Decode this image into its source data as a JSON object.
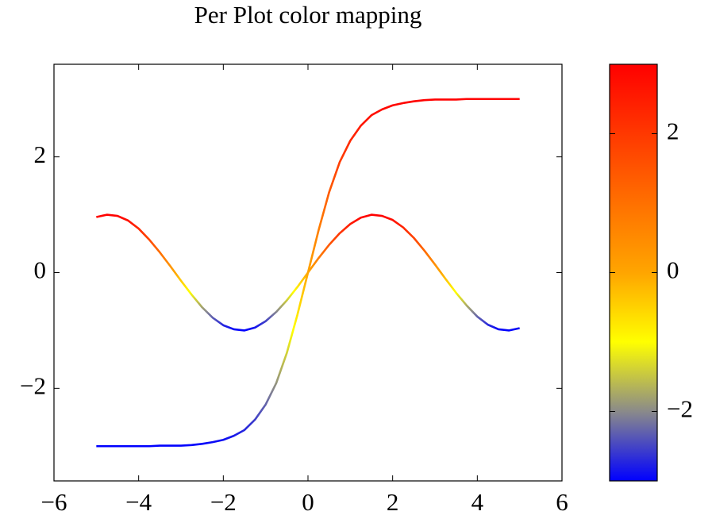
{
  "chart_data": {
    "type": "line",
    "title": "Per Plot color mapping",
    "x": [
      -5,
      -4.75,
      -4.5,
      -4.25,
      -4,
      -3.75,
      -3.5,
      -3.25,
      -3,
      -2.75,
      -2.5,
      -2.25,
      -2,
      -1.75,
      -1.5,
      -1.25,
      -1,
      -0.75,
      -0.5,
      -0.25,
      0,
      0.25,
      0.5,
      0.75,
      1,
      1.25,
      1.5,
      1.75,
      2,
      2.25,
      2.5,
      2.75,
      3,
      3.25,
      3.5,
      3.75,
      4,
      4.25,
      4.5,
      4.75,
      5
    ],
    "series": [
      {
        "values": [
          0.96,
          1.0,
          0.98,
          0.9,
          0.76,
          0.57,
          0.35,
          0.11,
          -0.14,
          -0.38,
          -0.6,
          -0.78,
          -0.91,
          -0.98,
          -1.0,
          -0.95,
          -0.84,
          -0.68,
          -0.48,
          -0.25,
          0,
          0.25,
          0.48,
          0.68,
          0.84,
          0.95,
          1.0,
          0.98,
          0.91,
          0.78,
          0.6,
          0.38,
          0.14,
          -0.11,
          -0.35,
          -0.57,
          -0.76,
          -0.9,
          -0.98,
          -1.0,
          -0.96
        ]
      },
      {
        "values": [
          -3.0,
          -3.0,
          -3.0,
          -3.0,
          -3.0,
          -3.0,
          -2.99,
          -2.99,
          -2.99,
          -2.98,
          -2.96,
          -2.93,
          -2.89,
          -2.82,
          -2.72,
          -2.54,
          -2.28,
          -1.91,
          -1.39,
          -0.73,
          0,
          0.73,
          1.39,
          1.91,
          2.28,
          2.54,
          2.72,
          2.82,
          2.89,
          2.93,
          2.96,
          2.98,
          2.99,
          2.99,
          2.99,
          3.0,
          3.0,
          3.0,
          3.0,
          3.0,
          3.0
        ]
      }
    ],
    "colormap": [
      "#0000ff",
      "#8a8a8a",
      "#ffff00",
      "#ffa500",
      "#ff7000",
      "#ff3800",
      "#ff0000"
    ],
    "xlim": [
      -6,
      6
    ],
    "ylim": [
      -3.6,
      3.6
    ],
    "xticks": [
      {
        "value": -6,
        "label": "−6"
      },
      {
        "value": -4,
        "label": "−4"
      },
      {
        "value": -2,
        "label": "−2"
      },
      0,
      2,
      4,
      6
    ],
    "yticks": [
      {
        "value": -2,
        "label": "−2"
      },
      0,
      2
    ],
    "clim": [
      -3,
      3
    ],
    "cticks": [
      {
        "value": -2,
        "label": "−2"
      },
      0,
      2
    ]
  }
}
